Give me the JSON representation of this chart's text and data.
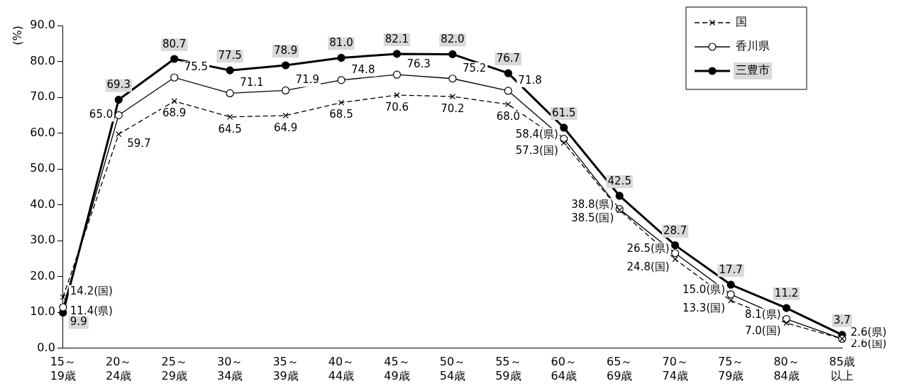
{
  "chart_data": {
    "type": "line",
    "ylabel": "(%)",
    "categories": [
      "15～19歳",
      "20～24歳",
      "25～29歳",
      "30～34歳",
      "35～39歳",
      "40～44歳",
      "45～49歳",
      "50～54歳",
      "55～59歳",
      "60～64歳",
      "65～69歳",
      "70～74歳",
      "75～79歳",
      "80～84歳",
      "85歳以上"
    ],
    "ylim": [
      0,
      90
    ],
    "yticks": [
      {
        "value": 0,
        "label": "0.0"
      },
      {
        "value": 10,
        "label": "10.0"
      },
      {
        "value": 20,
        "label": "20.0"
      },
      {
        "value": 30,
        "label": "30.0"
      },
      {
        "value": 40,
        "label": "40.0"
      },
      {
        "value": 50,
        "label": "50.0"
      },
      {
        "value": 60,
        "label": "60.0"
      },
      {
        "value": 70,
        "label": "70.0"
      },
      {
        "value": 80,
        "label": "80.0"
      },
      {
        "value": 90,
        "label": "90.0"
      }
    ],
    "grid": false,
    "legend": "top right",
    "series": [
      {
        "name": "国",
        "color": "#000000",
        "marker": "cross",
        "line_style": "dashed",
        "values": [
          14.2,
          59.7,
          68.9,
          64.5,
          64.9,
          68.5,
          70.6,
          70.2,
          68.0,
          57.3,
          38.5,
          24.8,
          13.3,
          7.0,
          2.6
        ],
        "value_labels": [
          "14.2(国)",
          "59.7",
          "68.9",
          "64.5",
          "64.9",
          "68.5",
          "70.6",
          "70.2",
          "68.0",
          "57.3(国)",
          "38.5(国)",
          "24.8(国)",
          "13.3(国)",
          "7.0(国)",
          "2.6(国)"
        ]
      },
      {
        "name": "香川県",
        "color": "#000000",
        "marker": "circle",
        "line_style": "solid",
        "values": [
          11.4,
          65.0,
          75.5,
          71.1,
          71.9,
          74.8,
          76.3,
          75.2,
          71.8,
          58.4,
          38.8,
          26.5,
          15.0,
          8.1,
          2.6
        ],
        "value_labels": [
          "11.4(県)",
          "65.0",
          "75.5",
          "71.1",
          "71.9",
          "74.8",
          "76.3",
          "75.2",
          "71.8",
          "58.4(県)",
          "38.8(県)",
          "26.5(県)",
          "15.0(県)",
          "8.1(県)",
          "2.6(県)"
        ]
      },
      {
        "name": "三豊市",
        "color": "#000000",
        "marker": "circle",
        "line_style": "solid",
        "values": [
          9.9,
          69.3,
          80.7,
          77.5,
          78.9,
          81.0,
          82.1,
          82.0,
          76.7,
          61.5,
          42.5,
          28.7,
          17.7,
          11.2,
          3.7
        ],
        "value_labels": [
          "9.9",
          "69.3",
          "80.7",
          "77.5",
          "78.9",
          "81.0",
          "82.1",
          "82.0",
          "76.7",
          "61.5",
          "42.5",
          "28.7",
          "17.7",
          "11.2",
          "3.7"
        ]
      }
    ]
  }
}
